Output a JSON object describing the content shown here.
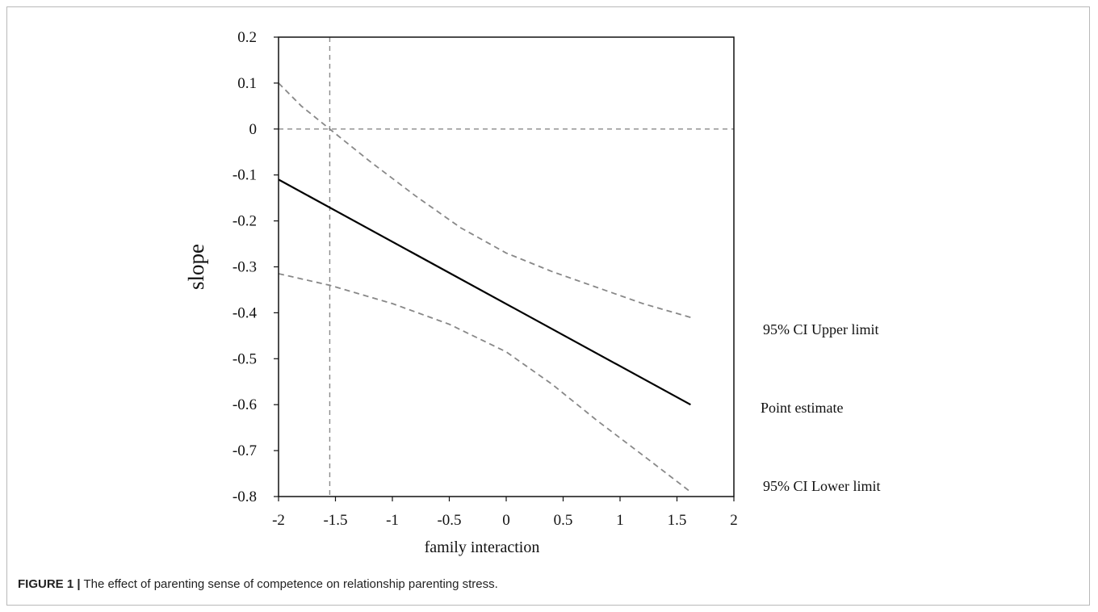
{
  "caption": {
    "label": "FIGURE 1 |",
    "text": " The effect of parenting sense of competence on relationship parenting stress."
  },
  "chart_data": {
    "type": "line",
    "title": "",
    "xlabel": "family interaction",
    "ylabel": "slope",
    "xlim": [
      -2,
      2
    ],
    "ylim": [
      -0.8,
      0.2
    ],
    "x_ticks": [
      "-2",
      "-1.5",
      "-1",
      "-0.5",
      "0",
      "0.5",
      "1",
      "1.5",
      "2"
    ],
    "y_ticks": [
      "0.2",
      "0.1",
      "0",
      "-0.1",
      "-0.2",
      "-0.3",
      "-0.4",
      "-0.5",
      "-0.6",
      "-0.7",
      "-0.8"
    ],
    "legend_placement": "right",
    "series": [
      {
        "name": "95% CI Upper limit",
        "style": "dashed",
        "color": "#888888",
        "x": [
          -2,
          -1.8,
          -1.55,
          -1.2,
          -0.8,
          -0.4,
          0,
          0.4,
          0.8,
          1.2,
          1.62
        ],
        "y": [
          0.1,
          0.05,
          0.0,
          -0.07,
          -0.145,
          -0.215,
          -0.27,
          -0.31,
          -0.345,
          -0.38,
          -0.41
        ]
      },
      {
        "name": "Point estimate",
        "style": "solid",
        "color": "#000000",
        "x": [
          -2,
          1.62
        ],
        "y": [
          -0.11,
          -0.6
        ]
      },
      {
        "name": "95% CI Lower limit",
        "style": "dashed",
        "color": "#888888",
        "x": [
          -2,
          -1.55,
          -1.0,
          -0.5,
          0,
          0.4,
          0.8,
          1.2,
          1.62
        ],
        "y": [
          -0.315,
          -0.34,
          -0.38,
          -0.425,
          -0.485,
          -0.555,
          -0.635,
          -0.71,
          -0.79
        ]
      }
    ],
    "reference_lines": [
      {
        "axis": "y",
        "value": 0,
        "style": "dashed"
      },
      {
        "axis": "x",
        "value": -1.55,
        "style": "dashed"
      }
    ]
  }
}
